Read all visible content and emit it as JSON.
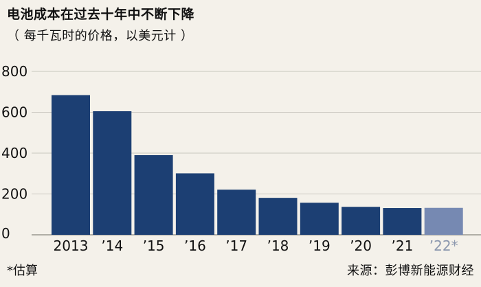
{
  "title": "电池成本在过去十年中不断下降",
  "subtitle": "（ 每千瓦时的价格，以美元计 ）",
  "footnote": "*估算",
  "source": "来源：彭博新能源财经",
  "colors": {
    "bar": "#1c3f73",
    "bar_estimate": "#7689b2",
    "grid": "#c9c6bf",
    "background": "#f4f1ea"
  },
  "chart_data": {
    "type": "bar",
    "categories": [
      "2013",
      "’14",
      "’15",
      "’16",
      "’17",
      "’18",
      "’19",
      "’20",
      "’21",
      "’22*"
    ],
    "values": [
      684,
      605,
      390,
      301,
      221,
      181,
      157,
      137,
      131,
      132
    ],
    "estimated": [
      false,
      false,
      false,
      false,
      false,
      false,
      false,
      false,
      false,
      true
    ],
    "ylim": [
      0,
      800
    ],
    "yticks": [
      0,
      200,
      400,
      600,
      800
    ],
    "ytick_labels": [
      "0",
      "200",
      "400",
      "600",
      "800"
    ],
    "grid": true,
    "legend": "none"
  }
}
